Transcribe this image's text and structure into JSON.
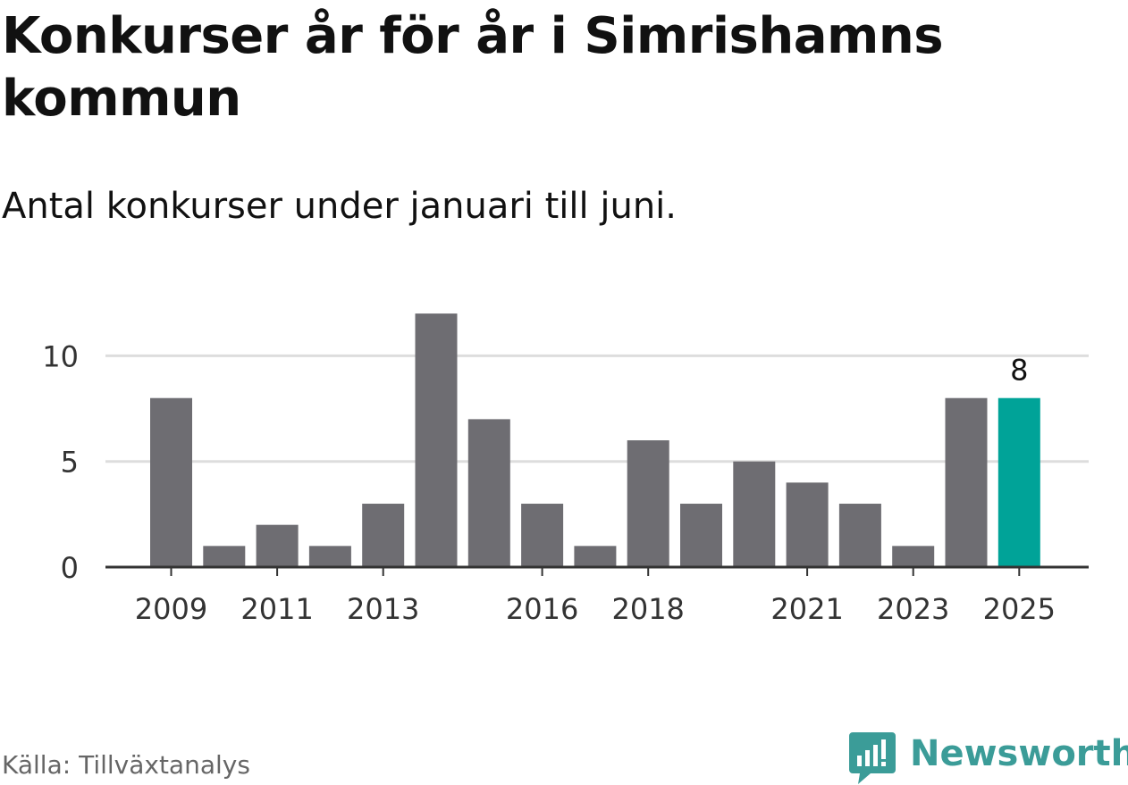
{
  "header": {
    "title": "Konkurser år för år i Simrishamns kommun",
    "subtitle": "Antal konkurser under januari till juni."
  },
  "footer": {
    "source": "Källa: Tillväxtanalys",
    "brand": "Newsworthy",
    "brand_icon": "bar-chart-speech-bubble-icon"
  },
  "colors": {
    "bar": "#6e6d72",
    "highlight": "#00a398",
    "grid": "#dddddd",
    "axis": "#333333",
    "text": "#333333",
    "brand": "#3b9c98"
  },
  "chart_data": {
    "type": "bar",
    "categories": [
      "2009",
      "2010",
      "2011",
      "2012",
      "2013",
      "2014",
      "2015",
      "2016",
      "2017",
      "2018",
      "2019",
      "2020",
      "2021",
      "2022",
      "2023",
      "2024",
      "2025"
    ],
    "values": [
      8,
      1,
      2,
      1,
      3,
      12,
      7,
      3,
      1,
      6,
      3,
      5,
      4,
      3,
      1,
      8,
      8
    ],
    "x_tick_labels": [
      "2009",
      "2011",
      "2013",
      "2016",
      "2018",
      "2021",
      "2023",
      "2025"
    ],
    "y_ticks": [
      0,
      5,
      10
    ],
    "ylim": [
      0,
      12
    ],
    "grid": true,
    "highlight_category": "2025",
    "data_labels": [
      {
        "category": "2025",
        "text": "8"
      }
    ],
    "title": "Konkurser år för år i Simrishamns kommun",
    "subtitle": "Antal konkurser under januari till juni.",
    "xlabel": "",
    "ylabel": ""
  }
}
